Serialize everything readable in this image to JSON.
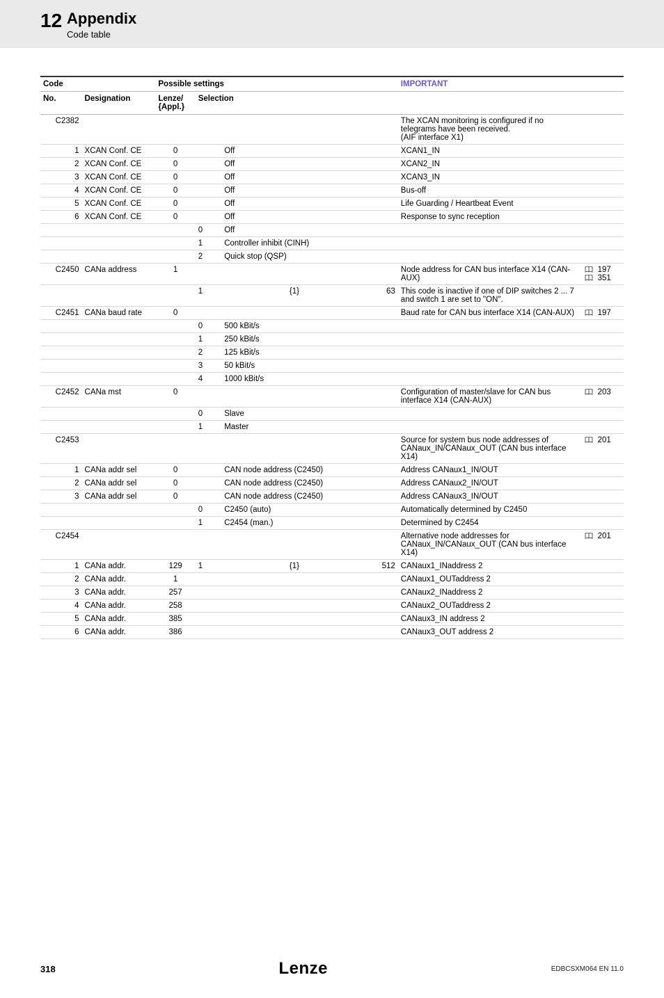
{
  "header": {
    "chapter_no": "12",
    "title": "Appendix",
    "subtitle": "Code table"
  },
  "table": {
    "headers": {
      "code": "Code",
      "possible": "Possible settings",
      "important": "IMPORTANT",
      "no": "No.",
      "designation": "Designation",
      "lenze": "Lenze/\n{Appl.}",
      "selection": "Selection"
    },
    "rows": [
      {
        "no": "C2382",
        "desig": "",
        "lenze": "",
        "sel_a": "",
        "sel_b": "",
        "sel_c": "",
        "imp": "The XCAN monitoring is configured if no telegrams have been received.\n(AIF interface X1)",
        "ref": "",
        "section": true
      },
      {
        "no": "1",
        "desig": "XCAN Conf. CE",
        "lenze": "0",
        "sel_a": "",
        "sel_b": "Off",
        "sel_c": "",
        "imp": "XCAN1_IN",
        "ref": ""
      },
      {
        "no": "2",
        "desig": "XCAN Conf. CE",
        "lenze": "0",
        "sel_a": "",
        "sel_b": "Off",
        "sel_c": "",
        "imp": "XCAN2_IN",
        "ref": ""
      },
      {
        "no": "3",
        "desig": "XCAN Conf. CE",
        "lenze": "0",
        "sel_a": "",
        "sel_b": "Off",
        "sel_c": "",
        "imp": "XCAN3_IN",
        "ref": ""
      },
      {
        "no": "4",
        "desig": "XCAN Conf. CE",
        "lenze": "0",
        "sel_a": "",
        "sel_b": "Off",
        "sel_c": "",
        "imp": "Bus-off",
        "ref": ""
      },
      {
        "no": "5",
        "desig": "XCAN Conf. CE",
        "lenze": "0",
        "sel_a": "",
        "sel_b": "Off",
        "sel_c": "",
        "imp": "Life Guarding / Heartbeat Event",
        "ref": ""
      },
      {
        "no": "6",
        "desig": "XCAN Conf. CE",
        "lenze": "0",
        "sel_a": "",
        "sel_b": "Off",
        "sel_c": "",
        "imp": "Response to sync reception",
        "ref": ""
      },
      {
        "no": "",
        "desig": "",
        "lenze": "",
        "sel_a": "0",
        "sel_b": "Off",
        "sel_c": "",
        "imp": "",
        "ref": ""
      },
      {
        "no": "",
        "desig": "",
        "lenze": "",
        "sel_a": "1",
        "sel_b": "Controller inhibit (CINH)",
        "sel_c": "",
        "imp": "",
        "ref": ""
      },
      {
        "no": "",
        "desig": "",
        "lenze": "",
        "sel_a": "2",
        "sel_b": "Quick stop (QSP)",
        "sel_c": "",
        "imp": "",
        "ref": ""
      },
      {
        "no": "C2450",
        "desig": "CANa address",
        "lenze": "1",
        "sel_a": "",
        "sel_b": "",
        "sel_c": "",
        "imp": "Node address for CAN bus interface X14 (CAN-AUX)",
        "ref": "197|351",
        "section": true
      },
      {
        "no": "",
        "desig": "",
        "lenze": "",
        "sel_a": "1",
        "sel_b": "{1}",
        "sel_c": "63",
        "imp": "This code is inactive if one of DIP switches 2 ... 7 and switch 1 are set to \"ON\".",
        "ref": ""
      },
      {
        "no": "C2451",
        "desig": "CANa baud rate",
        "lenze": "0",
        "sel_a": "",
        "sel_b": "",
        "sel_c": "",
        "imp": "Baud rate for CAN bus interface X14 (CAN-AUX)",
        "ref": "197",
        "section": true
      },
      {
        "no": "",
        "desig": "",
        "lenze": "",
        "sel_a": "0",
        "sel_b": "500 kBit/s",
        "sel_c": "",
        "imp": "",
        "ref": ""
      },
      {
        "no": "",
        "desig": "",
        "lenze": "",
        "sel_a": "1",
        "sel_b": "250 kBit/s",
        "sel_c": "",
        "imp": "",
        "ref": ""
      },
      {
        "no": "",
        "desig": "",
        "lenze": "",
        "sel_a": "2",
        "sel_b": "125 kBit/s",
        "sel_c": "",
        "imp": "",
        "ref": ""
      },
      {
        "no": "",
        "desig": "",
        "lenze": "",
        "sel_a": "3",
        "sel_b": "50 kBit/s",
        "sel_c": "",
        "imp": "",
        "ref": ""
      },
      {
        "no": "",
        "desig": "",
        "lenze": "",
        "sel_a": "4",
        "sel_b": "1000 kBit/s",
        "sel_c": "",
        "imp": "",
        "ref": ""
      },
      {
        "no": "C2452",
        "desig": "CANa mst",
        "lenze": "0",
        "sel_a": "",
        "sel_b": "",
        "sel_c": "",
        "imp": "Configuration of master/slave for CAN bus interface X14 (CAN-AUX)",
        "ref": "203",
        "section": true
      },
      {
        "no": "",
        "desig": "",
        "lenze": "",
        "sel_a": "0",
        "sel_b": "Slave",
        "sel_c": "",
        "imp": "",
        "ref": ""
      },
      {
        "no": "",
        "desig": "",
        "lenze": "",
        "sel_a": "1",
        "sel_b": "Master",
        "sel_c": "",
        "imp": "",
        "ref": ""
      },
      {
        "no": "C2453",
        "desig": "",
        "lenze": "",
        "sel_a": "",
        "sel_b": "",
        "sel_c": "",
        "imp": "Source for system bus node addresses of CANaux_IN/CANaux_OUT (CAN bus interface X14)",
        "ref": "201",
        "section": true
      },
      {
        "no": "1",
        "desig": "CANa addr sel",
        "lenze": "0",
        "sel_a": "",
        "sel_b": "CAN node address (C2450)",
        "sel_c": "",
        "imp": "Address CANaux1_IN/OUT",
        "ref": ""
      },
      {
        "no": "2",
        "desig": "CANa addr sel",
        "lenze": "0",
        "sel_a": "",
        "sel_b": "CAN node address (C2450)",
        "sel_c": "",
        "imp": "Address CANaux2_IN/OUT",
        "ref": ""
      },
      {
        "no": "3",
        "desig": "CANa addr sel",
        "lenze": "0",
        "sel_a": "",
        "sel_b": "CAN node address (C2450)",
        "sel_c": "",
        "imp": "Address CANaux3_IN/OUT",
        "ref": ""
      },
      {
        "no": "",
        "desig": "",
        "lenze": "",
        "sel_a": "0",
        "sel_b": "C2450 (auto)",
        "sel_c": "",
        "imp": "Automatically determined by C2450",
        "ref": ""
      },
      {
        "no": "",
        "desig": "",
        "lenze": "",
        "sel_a": "1",
        "sel_b": "C2454 (man.)",
        "sel_c": "",
        "imp": "Determined by C2454",
        "ref": ""
      },
      {
        "no": "C2454",
        "desig": "",
        "lenze": "",
        "sel_a": "",
        "sel_b": "",
        "sel_c": "",
        "imp": "Alternative node addresses for CANaux_IN/CANaux_OUT (CAN bus interface X14)",
        "ref": "201",
        "section": true
      },
      {
        "no": "1",
        "desig": "CANa addr.",
        "lenze": "129",
        "sel_a": "1",
        "sel_b": "{1}",
        "sel_c": "512",
        "imp": "CANaux1_INaddress 2",
        "ref": ""
      },
      {
        "no": "2",
        "desig": "CANa addr.",
        "lenze": "1",
        "sel_a": "",
        "sel_b": "",
        "sel_c": "",
        "imp": "CANaux1_OUTaddress 2",
        "ref": ""
      },
      {
        "no": "3",
        "desig": "CANa addr.",
        "lenze": "257",
        "sel_a": "",
        "sel_b": "",
        "sel_c": "",
        "imp": "CANaux2_INaddress 2",
        "ref": ""
      },
      {
        "no": "4",
        "desig": "CANa addr.",
        "lenze": "258",
        "sel_a": "",
        "sel_b": "",
        "sel_c": "",
        "imp": "CANaux2_OUTaddress 2",
        "ref": ""
      },
      {
        "no": "5",
        "desig": "CANa addr.",
        "lenze": "385",
        "sel_a": "",
        "sel_b": "",
        "sel_c": "",
        "imp": "CANaux3_IN address 2",
        "ref": ""
      },
      {
        "no": "6",
        "desig": "CANa addr.",
        "lenze": "386",
        "sel_a": "",
        "sel_b": "",
        "sel_c": "",
        "imp": "CANaux3_OUT address 2",
        "ref": ""
      }
    ]
  },
  "footer": {
    "page": "318",
    "logo": "Lenze",
    "doc_code": "EDBCSXM064 EN 11.0"
  }
}
